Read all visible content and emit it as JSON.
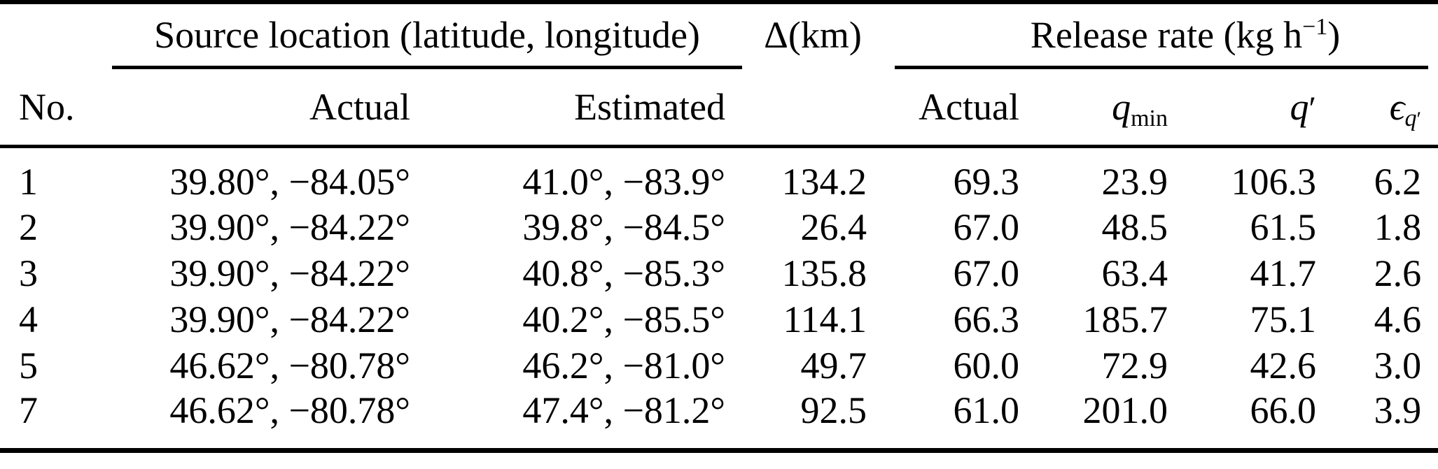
{
  "colors": {
    "text": "#000000",
    "background": "#ffffff",
    "rule": "#000000"
  },
  "header": {
    "groups": {
      "source_location": "Source location (latitude, longitude)",
      "delta_km": "Δ(km)",
      "release_rate_prefix": "Release rate (kg h",
      "release_rate_sup": "−1",
      "release_rate_suffix": ")"
    },
    "columns": {
      "no": "No.",
      "actual_location": "Actual",
      "estimated_location": "Estimated",
      "actual_rate": "Actual",
      "q_min_base": "q",
      "q_min_sub": "min",
      "q_prime_base": "q",
      "q_prime_mark": "′",
      "epsilon_base": "ϵ",
      "epsilon_sub_base": "q",
      "epsilon_sub_mark": "′"
    }
  },
  "rows": [
    {
      "no": "1",
      "actual_location": "39.80°, −84.05°",
      "estimated_location": "41.0°, −83.9°",
      "delta_km": "134.2",
      "actual_rate": "69.3",
      "q_min": "23.9",
      "q_prime": "106.3",
      "epsilon_q_prime": "6.2"
    },
    {
      "no": "2",
      "actual_location": "39.90°, −84.22°",
      "estimated_location": "39.8°, −84.5°",
      "delta_km": "26.4",
      "actual_rate": "67.0",
      "q_min": "48.5",
      "q_prime": "61.5",
      "epsilon_q_prime": "1.8"
    },
    {
      "no": "3",
      "actual_location": "39.90°, −84.22°",
      "estimated_location": "40.8°, −85.3°",
      "delta_km": "135.8",
      "actual_rate": "67.0",
      "q_min": "63.4",
      "q_prime": "41.7",
      "epsilon_q_prime": "2.6"
    },
    {
      "no": "4",
      "actual_location": "39.90°, −84.22°",
      "estimated_location": "40.2°, −85.5°",
      "delta_km": "114.1",
      "actual_rate": "66.3",
      "q_min": "185.7",
      "q_prime": "75.1",
      "epsilon_q_prime": "4.6"
    },
    {
      "no": "5",
      "actual_location": "46.62°, −80.78°",
      "estimated_location": "46.2°, −81.0°",
      "delta_km": "49.7",
      "actual_rate": "60.0",
      "q_min": "72.9",
      "q_prime": "42.6",
      "epsilon_q_prime": "3.0"
    },
    {
      "no": "7",
      "actual_location": "46.62°, −80.78°",
      "estimated_location": "47.4°, −81.2°",
      "delta_km": "92.5",
      "actual_rate": "61.0",
      "q_min": "201.0",
      "q_prime": "66.0",
      "epsilon_q_prime": "3.9"
    }
  ],
  "chart_data": {
    "type": "table",
    "title": "Source location, distance error and release rate results",
    "columns": [
      "No.",
      "Actual source location",
      "Estimated source location",
      "Δ (km)",
      "Actual release rate",
      "q_min",
      "q′",
      "ε_q′"
    ],
    "rows": [
      [
        "1",
        "39.80°, −84.05°",
        "41.0°, −83.9°",
        134.2,
        69.3,
        23.9,
        106.3,
        6.2
      ],
      [
        "2",
        "39.90°, −84.22°",
        "39.8°, −84.5°",
        26.4,
        67.0,
        48.5,
        61.5,
        1.8
      ],
      [
        "3",
        "39.90°, −84.22°",
        "40.8°, −85.3°",
        135.8,
        67.0,
        63.4,
        41.7,
        2.6
      ],
      [
        "4",
        "39.90°, −84.22°",
        "40.2°, −85.5°",
        114.1,
        66.3,
        185.7,
        75.1,
        4.6
      ],
      [
        "5",
        "46.62°, −80.78°",
        "46.2°, −81.0°",
        49.7,
        60.0,
        72.9,
        42.6,
        3.0
      ],
      [
        "7",
        "46.62°, −80.78°",
        "47.4°, −81.2°",
        92.5,
        61.0,
        201.0,
        66.0,
        3.9
      ]
    ]
  }
}
